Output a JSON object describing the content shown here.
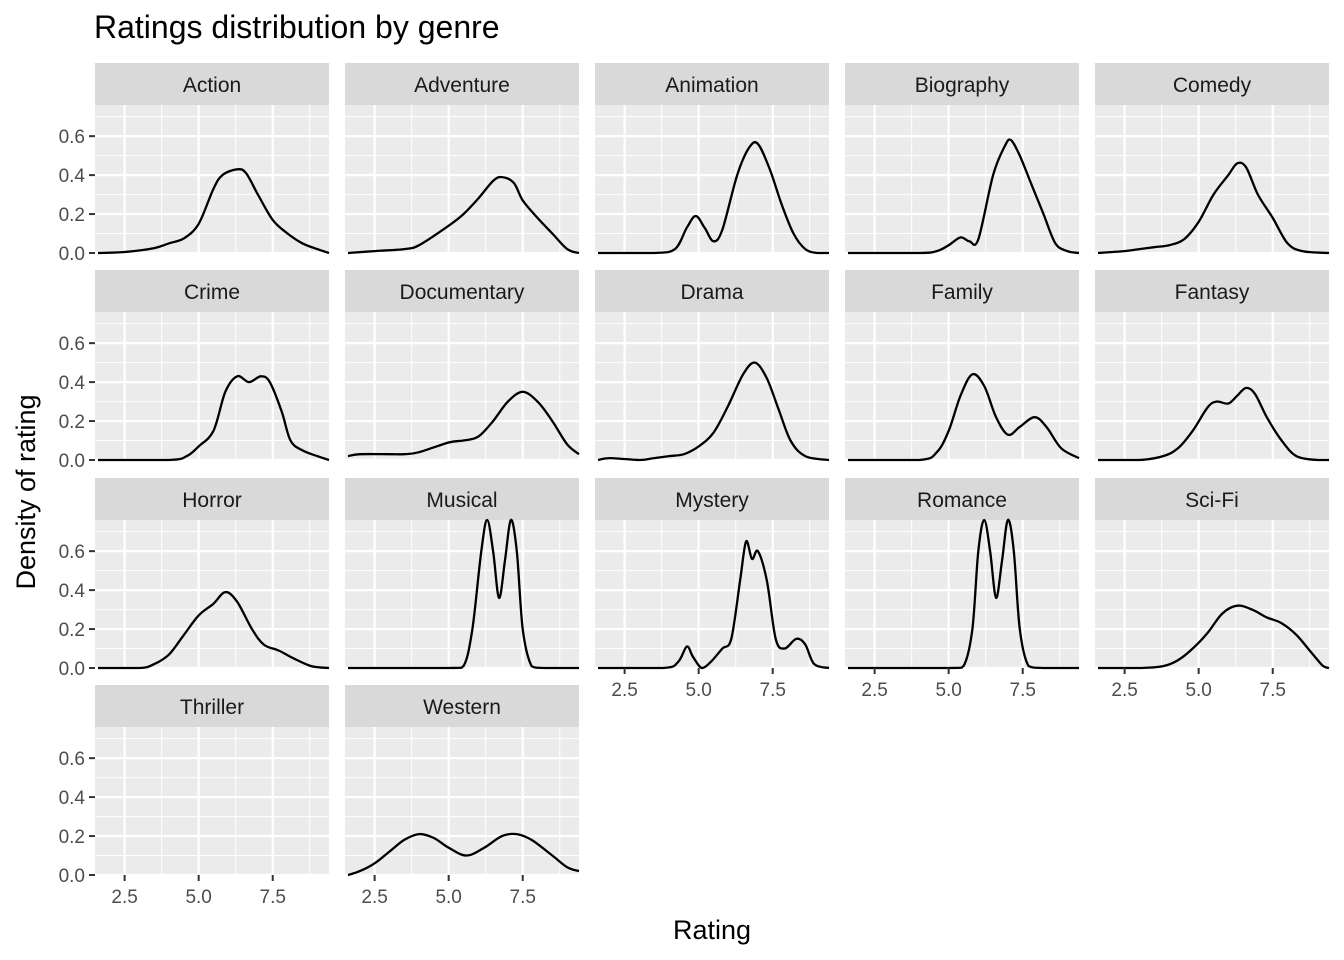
{
  "chart_data": {
    "type": "line",
    "title": "Ratings distribution by genre",
    "xlabel": "Rating",
    "ylabel": "Density of rating",
    "xlim": [
      1.5,
      9.4
    ],
    "ylim": [
      0,
      0.76
    ],
    "x_ticks": [
      2.5,
      5.0,
      7.5
    ],
    "x_tick_labels": [
      "2.5",
      "5.0",
      "7.5"
    ],
    "y_ticks": [
      0,
      0.2,
      0.4,
      0.6
    ],
    "y_tick_labels": [
      "0.0",
      "0.2",
      "0.4",
      "0.6"
    ],
    "facet_columns": 5,
    "grid": true,
    "colors": {
      "panel_bg": "#ebebeb",
      "strip_bg": "#d9d9d9",
      "grid": "#ffffff",
      "line": "#000000"
    },
    "panels": [
      {
        "genre": "Action",
        "points": [
          [
            1.6,
            0.0
          ],
          [
            2.5,
            0.005
          ],
          [
            3.5,
            0.025
          ],
          [
            4.0,
            0.05
          ],
          [
            4.5,
            0.075
          ],
          [
            5.0,
            0.15
          ],
          [
            5.5,
            0.33
          ],
          [
            5.8,
            0.4
          ],
          [
            6.3,
            0.43
          ],
          [
            6.6,
            0.41
          ],
          [
            7.0,
            0.3
          ],
          [
            7.5,
            0.17
          ],
          [
            8.0,
            0.1
          ],
          [
            8.5,
            0.05
          ],
          [
            9.0,
            0.02
          ],
          [
            9.4,
            0.0
          ]
        ]
      },
      {
        "genre": "Adventure",
        "points": [
          [
            1.6,
            0.0
          ],
          [
            2.5,
            0.01
          ],
          [
            3.5,
            0.02
          ],
          [
            4.0,
            0.04
          ],
          [
            5.0,
            0.14
          ],
          [
            5.5,
            0.2
          ],
          [
            6.0,
            0.28
          ],
          [
            6.5,
            0.37
          ],
          [
            6.8,
            0.39
          ],
          [
            7.2,
            0.36
          ],
          [
            7.5,
            0.27
          ],
          [
            8.0,
            0.18
          ],
          [
            8.5,
            0.1
          ],
          [
            9.0,
            0.02
          ],
          [
            9.4,
            0.0
          ]
        ]
      },
      {
        "genre": "Animation",
        "points": [
          [
            1.6,
            0.0
          ],
          [
            3.5,
            0.0
          ],
          [
            4.2,
            0.02
          ],
          [
            4.6,
            0.13
          ],
          [
            4.9,
            0.19
          ],
          [
            5.2,
            0.13
          ],
          [
            5.5,
            0.06
          ],
          [
            5.8,
            0.12
          ],
          [
            6.3,
            0.4
          ],
          [
            6.7,
            0.54
          ],
          [
            7.0,
            0.56
          ],
          [
            7.4,
            0.43
          ],
          [
            7.8,
            0.25
          ],
          [
            8.2,
            0.1
          ],
          [
            8.6,
            0.02
          ],
          [
            9.0,
            0.0
          ],
          [
            9.4,
            0.0
          ]
        ]
      },
      {
        "genre": "Biography",
        "points": [
          [
            1.6,
            0.0
          ],
          [
            4.0,
            0.0
          ],
          [
            4.6,
            0.01
          ],
          [
            5.0,
            0.04
          ],
          [
            5.4,
            0.08
          ],
          [
            5.7,
            0.06
          ],
          [
            6.0,
            0.07
          ],
          [
            6.5,
            0.4
          ],
          [
            6.9,
            0.55
          ],
          [
            7.1,
            0.58
          ],
          [
            7.4,
            0.5
          ],
          [
            7.8,
            0.35
          ],
          [
            8.2,
            0.2
          ],
          [
            8.6,
            0.05
          ],
          [
            9.0,
            0.01
          ],
          [
            9.4,
            0.0
          ]
        ]
      },
      {
        "genre": "Comedy",
        "points": [
          [
            1.6,
            0.0
          ],
          [
            2.5,
            0.01
          ],
          [
            3.0,
            0.02
          ],
          [
            3.5,
            0.03
          ],
          [
            4.0,
            0.04
          ],
          [
            4.5,
            0.07
          ],
          [
            5.0,
            0.16
          ],
          [
            5.5,
            0.3
          ],
          [
            6.0,
            0.4
          ],
          [
            6.3,
            0.46
          ],
          [
            6.6,
            0.44
          ],
          [
            7.0,
            0.3
          ],
          [
            7.5,
            0.18
          ],
          [
            8.0,
            0.05
          ],
          [
            8.5,
            0.01
          ],
          [
            9.4,
            0.0
          ]
        ]
      },
      {
        "genre": "Crime",
        "points": [
          [
            1.6,
            0.0
          ],
          [
            4.0,
            0.0
          ],
          [
            4.6,
            0.02
          ],
          [
            5.0,
            0.07
          ],
          [
            5.5,
            0.15
          ],
          [
            5.9,
            0.35
          ],
          [
            6.3,
            0.43
          ],
          [
            6.7,
            0.4
          ],
          [
            7.1,
            0.43
          ],
          [
            7.4,
            0.4
          ],
          [
            7.8,
            0.25
          ],
          [
            8.1,
            0.1
          ],
          [
            8.5,
            0.05
          ],
          [
            9.0,
            0.02
          ],
          [
            9.4,
            0.0
          ]
        ]
      },
      {
        "genre": "Documentary",
        "points": [
          [
            1.6,
            0.02
          ],
          [
            2.0,
            0.03
          ],
          [
            3.0,
            0.03
          ],
          [
            3.5,
            0.03
          ],
          [
            4.0,
            0.04
          ],
          [
            5.0,
            0.09
          ],
          [
            5.5,
            0.1
          ],
          [
            6.0,
            0.12
          ],
          [
            6.5,
            0.2
          ],
          [
            7.0,
            0.3
          ],
          [
            7.5,
            0.35
          ],
          [
            8.0,
            0.3
          ],
          [
            8.5,
            0.2
          ],
          [
            9.0,
            0.08
          ],
          [
            9.4,
            0.03
          ]
        ]
      },
      {
        "genre": "Drama",
        "points": [
          [
            1.6,
            0.0
          ],
          [
            2.0,
            0.01
          ],
          [
            3.0,
            0.0
          ],
          [
            3.5,
            0.01
          ],
          [
            4.0,
            0.02
          ],
          [
            4.5,
            0.03
          ],
          [
            5.0,
            0.07
          ],
          [
            5.5,
            0.14
          ],
          [
            6.0,
            0.28
          ],
          [
            6.5,
            0.44
          ],
          [
            6.9,
            0.5
          ],
          [
            7.3,
            0.42
          ],
          [
            7.7,
            0.26
          ],
          [
            8.1,
            0.1
          ],
          [
            8.6,
            0.02
          ],
          [
            9.4,
            0.0
          ]
        ]
      },
      {
        "genre": "Family",
        "points": [
          [
            1.6,
            0.0
          ],
          [
            4.0,
            0.0
          ],
          [
            4.6,
            0.04
          ],
          [
            5.0,
            0.15
          ],
          [
            5.4,
            0.33
          ],
          [
            5.8,
            0.44
          ],
          [
            6.2,
            0.38
          ],
          [
            6.6,
            0.22
          ],
          [
            7.0,
            0.13
          ],
          [
            7.4,
            0.17
          ],
          [
            7.9,
            0.22
          ],
          [
            8.3,
            0.17
          ],
          [
            8.8,
            0.06
          ],
          [
            9.4,
            0.01
          ]
        ]
      },
      {
        "genre": "Fantasy",
        "points": [
          [
            1.6,
            0.0
          ],
          [
            3.0,
            0.0
          ],
          [
            3.8,
            0.02
          ],
          [
            4.3,
            0.06
          ],
          [
            4.8,
            0.15
          ],
          [
            5.3,
            0.27
          ],
          [
            5.6,
            0.3
          ],
          [
            6.0,
            0.29
          ],
          [
            6.3,
            0.33
          ],
          [
            6.6,
            0.37
          ],
          [
            6.9,
            0.34
          ],
          [
            7.3,
            0.22
          ],
          [
            7.8,
            0.1
          ],
          [
            8.3,
            0.02
          ],
          [
            9.0,
            0.0
          ],
          [
            9.4,
            0.0
          ]
        ]
      },
      {
        "genre": "Horror",
        "points": [
          [
            1.6,
            0.0
          ],
          [
            3.0,
            0.0
          ],
          [
            3.5,
            0.02
          ],
          [
            4.0,
            0.07
          ],
          [
            4.5,
            0.17
          ],
          [
            5.0,
            0.27
          ],
          [
            5.5,
            0.33
          ],
          [
            5.9,
            0.39
          ],
          [
            6.3,
            0.34
          ],
          [
            6.8,
            0.2
          ],
          [
            7.2,
            0.12
          ],
          [
            7.7,
            0.09
          ],
          [
            8.2,
            0.05
          ],
          [
            8.8,
            0.01
          ],
          [
            9.4,
            0.0
          ]
        ]
      },
      {
        "genre": "Musical",
        "points": [
          [
            1.6,
            0.0
          ],
          [
            5.0,
            0.0
          ],
          [
            5.5,
            0.01
          ],
          [
            5.8,
            0.2
          ],
          [
            6.1,
            0.6
          ],
          [
            6.3,
            0.76
          ],
          [
            6.5,
            0.6
          ],
          [
            6.7,
            0.36
          ],
          [
            6.9,
            0.55
          ],
          [
            7.1,
            0.76
          ],
          [
            7.3,
            0.6
          ],
          [
            7.5,
            0.2
          ],
          [
            7.8,
            0.01
          ],
          [
            8.2,
            0.0
          ],
          [
            9.4,
            0.0
          ]
        ]
      },
      {
        "genre": "Mystery",
        "points": [
          [
            1.6,
            0.0
          ],
          [
            3.8,
            0.0
          ],
          [
            4.3,
            0.03
          ],
          [
            4.6,
            0.11
          ],
          [
            4.8,
            0.06
          ],
          [
            5.1,
            0.0
          ],
          [
            5.4,
            0.03
          ],
          [
            5.8,
            0.1
          ],
          [
            6.1,
            0.15
          ],
          [
            6.4,
            0.45
          ],
          [
            6.6,
            0.65
          ],
          [
            6.8,
            0.56
          ],
          [
            7.0,
            0.6
          ],
          [
            7.3,
            0.45
          ],
          [
            7.6,
            0.15
          ],
          [
            7.9,
            0.1
          ],
          [
            8.3,
            0.15
          ],
          [
            8.6,
            0.12
          ],
          [
            8.9,
            0.02
          ],
          [
            9.4,
            0.0
          ]
        ]
      },
      {
        "genre": "Romance",
        "points": [
          [
            1.6,
            0.0
          ],
          [
            5.0,
            0.0
          ],
          [
            5.5,
            0.01
          ],
          [
            5.8,
            0.2
          ],
          [
            6.0,
            0.6
          ],
          [
            6.2,
            0.76
          ],
          [
            6.4,
            0.6
          ],
          [
            6.6,
            0.36
          ],
          [
            6.8,
            0.55
          ],
          [
            7.0,
            0.76
          ],
          [
            7.2,
            0.6
          ],
          [
            7.4,
            0.2
          ],
          [
            7.7,
            0.01
          ],
          [
            8.2,
            0.0
          ],
          [
            9.4,
            0.0
          ]
        ]
      },
      {
        "genre": "Sci-Fi",
        "points": [
          [
            1.6,
            0.0
          ],
          [
            3.0,
            0.0
          ],
          [
            3.8,
            0.01
          ],
          [
            4.3,
            0.04
          ],
          [
            4.8,
            0.1
          ],
          [
            5.3,
            0.18
          ],
          [
            5.8,
            0.28
          ],
          [
            6.3,
            0.32
          ],
          [
            6.8,
            0.3
          ],
          [
            7.3,
            0.26
          ],
          [
            7.8,
            0.23
          ],
          [
            8.3,
            0.17
          ],
          [
            8.8,
            0.08
          ],
          [
            9.2,
            0.01
          ],
          [
            9.4,
            0.0
          ]
        ]
      },
      {
        "genre": "Thriller",
        "points": []
      },
      {
        "genre": "Western",
        "points": [
          [
            1.6,
            0.0
          ],
          [
            2.0,
            0.02
          ],
          [
            2.5,
            0.06
          ],
          [
            3.0,
            0.12
          ],
          [
            3.5,
            0.18
          ],
          [
            4.0,
            0.21
          ],
          [
            4.5,
            0.19
          ],
          [
            5.0,
            0.14
          ],
          [
            5.6,
            0.1
          ],
          [
            6.2,
            0.14
          ],
          [
            6.8,
            0.2
          ],
          [
            7.3,
            0.21
          ],
          [
            7.8,
            0.18
          ],
          [
            8.5,
            0.1
          ],
          [
            9.0,
            0.04
          ],
          [
            9.4,
            0.02
          ]
        ]
      }
    ]
  }
}
